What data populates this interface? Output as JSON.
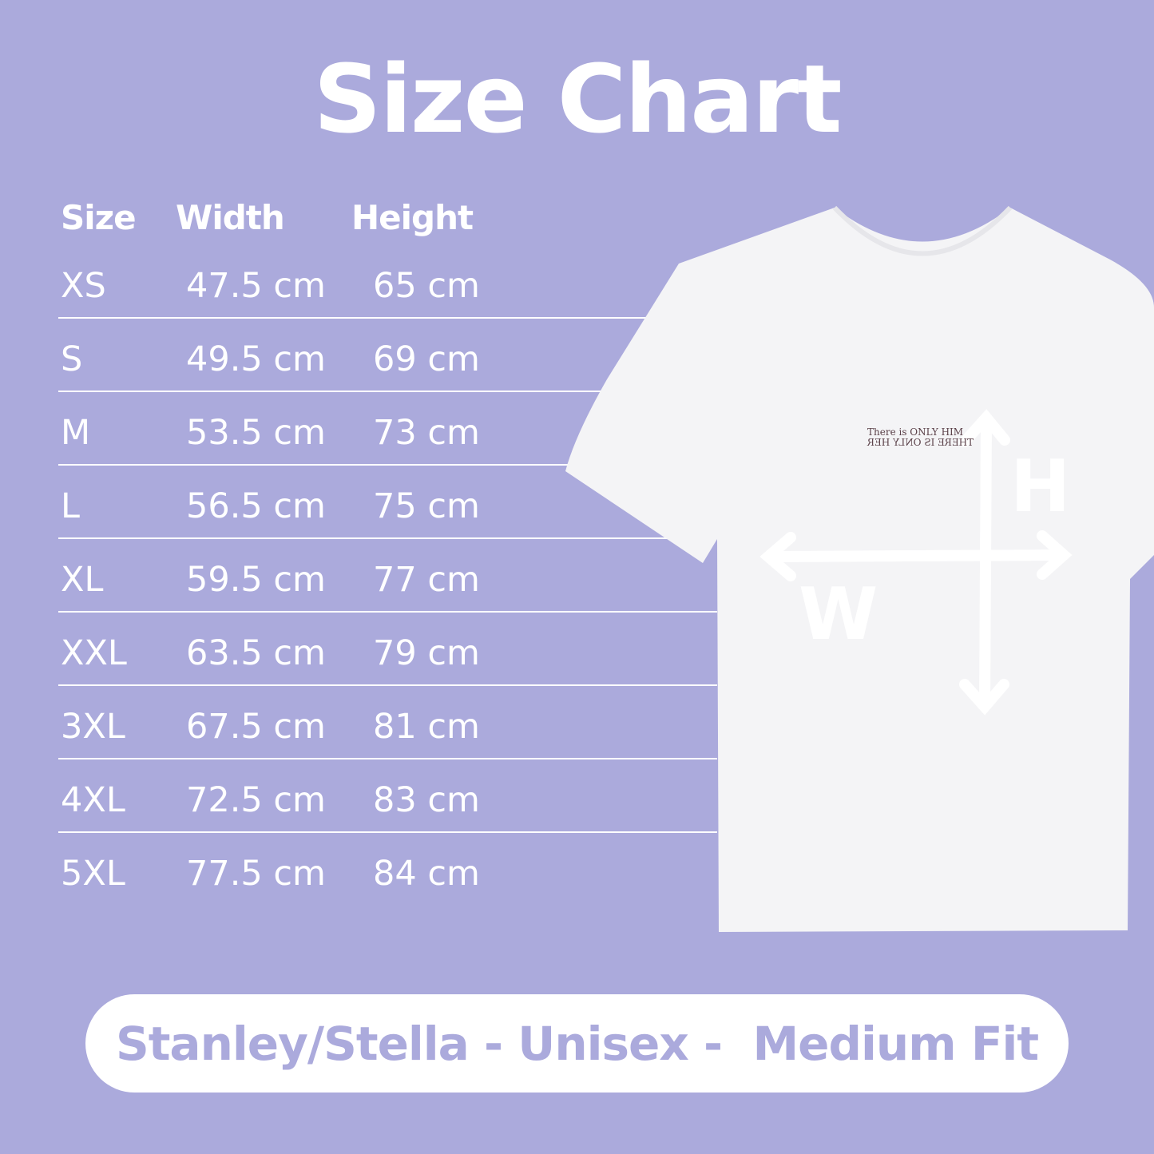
{
  "title": "Size Chart",
  "table": {
    "headers": [
      "Size",
      "Width",
      "Height"
    ],
    "rows": [
      [
        "XS",
        "47.5 cm",
        "65 cm"
      ],
      [
        "S",
        "49.5 cm",
        "69 cm"
      ],
      [
        "M",
        "53.5 cm",
        "73 cm"
      ],
      [
        "L",
        "56.5 cm",
        "75 cm"
      ],
      [
        "XL",
        "59.5 cm",
        "77 cm"
      ],
      [
        "XXL",
        "63.5 cm",
        "79 cm"
      ],
      [
        "3XL",
        "67.5 cm",
        "81 cm"
      ],
      [
        "4XL",
        "72.5 cm",
        "83 cm"
      ],
      [
        "5XL",
        "77.5 cm",
        "84 cm"
      ]
    ]
  },
  "shirt": {
    "print_line1": "There is ONLY HIM",
    "print_line2": "THERE IS ONLY HER",
    "height_label": "H",
    "width_label": "W"
  },
  "footer": "Stanley/Stella - Unisex -  Medium Fit",
  "colors": {
    "background": "#abaadc",
    "text": "#ffffff"
  }
}
